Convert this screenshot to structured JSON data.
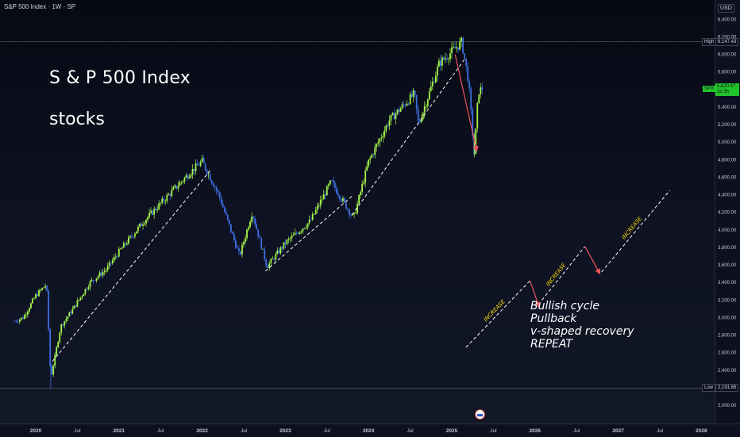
{
  "symbol_title": "S&P 500 Index · 1W · SP",
  "currency": "USD",
  "heading": "S & P 500 Index",
  "subheading": "stocks",
  "cycle_text": [
    "Bullish cycle",
    "Pullback",
    "v-shaped recovery",
    "REPEAT"
  ],
  "increase_label": "INCREASE",
  "tags": {
    "high_label": "High",
    "high_value": "6,147.43",
    "low_label": "Low",
    "low_value": "2,191.86",
    "spx_label": "SPX",
    "spx_value": "5,620.47",
    "spx_countdown": "2d 3h"
  },
  "colors": {
    "up_candle": "#a6f54a",
    "down_candle": "#3d6ee0",
    "dashed_line": "#ffffff",
    "arrow": "#f0525c",
    "increase_text": "#f5d90a",
    "price_tag": "#22c32a"
  },
  "chart_data": {
    "type": "candlestick",
    "timeframe": "1W",
    "y_axis": {
      "ticks": [
        "6,400.00",
        "6,200.00",
        "6,000.00",
        "5,800.00",
        "5,600.00",
        "5,400.00",
        "5,200.00",
        "5,000.00",
        "4,800.00",
        "4,600.00",
        "4,400.00",
        "4,200.00",
        "4,000.00",
        "3,800.00",
        "3,600.00",
        "3,400.00",
        "3,200.00",
        "3,000.00",
        "2,800.00",
        "2,600.00",
        "2,400.00",
        "2,200.00",
        "2,000.00"
      ],
      "range": [
        1960,
        6450
      ]
    },
    "x_axis": {
      "ticks": [
        "2020",
        "Jul",
        "2021",
        "Jul",
        "2022",
        "Jul",
        "2023",
        "Jul",
        "2024",
        "Jul",
        "2025",
        "Jul",
        "2026",
        "Jul",
        "2027",
        "Jul",
        "2028"
      ]
    },
    "price_path": [
      {
        "t": 2019.75,
        "p": 2960
      },
      {
        "t": 2019.85,
        "p": 3000
      },
      {
        "t": 2020.0,
        "p": 3250
      },
      {
        "t": 2020.13,
        "p": 3380
      },
      {
        "t": 2020.18,
        "p": 2300
      },
      {
        "t": 2020.3,
        "p": 2900
      },
      {
        "t": 2020.45,
        "p": 3100
      },
      {
        "t": 2020.65,
        "p": 3400
      },
      {
        "t": 2020.85,
        "p": 3550
      },
      {
        "t": 2021.0,
        "p": 3750
      },
      {
        "t": 2021.3,
        "p": 4100
      },
      {
        "t": 2021.6,
        "p": 4400
      },
      {
        "t": 2021.85,
        "p": 4650
      },
      {
        "t": 2022.0,
        "p": 4780
      },
      {
        "t": 2022.2,
        "p": 4400
      },
      {
        "t": 2022.45,
        "p": 3700
      },
      {
        "t": 2022.6,
        "p": 4200
      },
      {
        "t": 2022.78,
        "p": 3580
      },
      {
        "t": 2023.0,
        "p": 3850
      },
      {
        "t": 2023.3,
        "p": 4100
      },
      {
        "t": 2023.55,
        "p": 4550
      },
      {
        "t": 2023.82,
        "p": 4130
      },
      {
        "t": 2024.0,
        "p": 4780
      },
      {
        "t": 2024.25,
        "p": 5250
      },
      {
        "t": 2024.55,
        "p": 5550
      },
      {
        "t": 2024.6,
        "p": 5200
      },
      {
        "t": 2024.85,
        "p": 5900
      },
      {
        "t": 2025.12,
        "p": 6140
      },
      {
        "t": 2025.2,
        "p": 5700
      },
      {
        "t": 2025.27,
        "p": 4860
      },
      {
        "t": 2025.32,
        "p": 5580
      },
      {
        "t": 2025.38,
        "p": 5620
      }
    ],
    "trendlines": [
      {
        "from": [
          2020.2,
          2500
        ],
        "to": [
          2022.1,
          4680
        ]
      },
      {
        "from": [
          2022.76,
          3530
        ],
        "to": [
          2023.82,
          4400
        ]
      },
      {
        "from": [
          2023.8,
          4170
        ],
        "to": [
          2025.15,
          5940
        ]
      }
    ],
    "projection": {
      "dashed_segments": [
        {
          "from": [
            2025.17,
            2660
          ],
          "to": [
            2025.94,
            3420
          ]
        },
        {
          "from": [
            2026.0,
            3100
          ],
          "to": [
            2026.6,
            3810
          ]
        },
        {
          "from": [
            2026.8,
            3520
          ],
          "to": [
            2027.62,
            4450
          ]
        }
      ],
      "pullback_arrows": [
        {
          "from": [
            2025.94,
            3420
          ],
          "to": [
            2026.05,
            3120
          ]
        },
        {
          "from": [
            2026.6,
            3810
          ],
          "to": [
            2026.78,
            3500
          ]
        },
        {
          "from": [
            2025.04,
            6000
          ],
          "to": [
            2025.3,
            4900
          ]
        }
      ]
    },
    "high": 6147.43,
    "low": 2191.86,
    "last": 5620.47
  }
}
